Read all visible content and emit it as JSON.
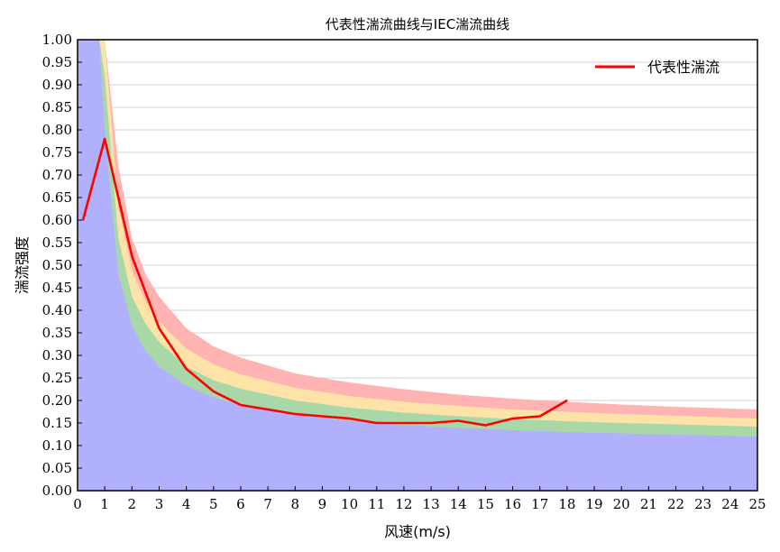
{
  "chart_data": {
    "type": "area",
    "title": "代表性湍流曲线与IEC湍流曲线",
    "xlabel": "风速(m/s)",
    "ylabel": "湍流强度",
    "xlim": [
      0,
      25
    ],
    "ylim": [
      0,
      1.0
    ],
    "x_ticks": [
      "0",
      "1",
      "2",
      "3",
      "4",
      "5",
      "6",
      "7",
      "8",
      "9",
      "10",
      "11",
      "12",
      "13",
      "14",
      "15",
      "16",
      "17",
      "18",
      "19",
      "20",
      "21",
      "22",
      "23",
      "24",
      "25"
    ],
    "y_ticks": [
      "0.00",
      "0.05",
      "0.10",
      "0.15",
      "0.20",
      "0.25",
      "0.30",
      "0.35",
      "0.40",
      "0.45",
      "0.50",
      "0.55",
      "0.60",
      "0.65",
      "0.70",
      "0.75",
      "0.80",
      "0.85",
      "0.90",
      "0.95",
      "1.00"
    ],
    "grid": "horizontal",
    "legend_position": "top-right",
    "bands": [
      {
        "color": "#b0b0fc",
        "x": [
          0.5,
          0.6,
          0.7,
          0.8,
          1.0,
          1.5,
          2,
          2.5,
          3,
          4,
          5,
          6,
          8,
          10,
          12,
          14,
          16,
          18,
          20,
          22,
          25
        ],
        "lower": 0,
        "upper": [
          1.0,
          1.0,
          1.0,
          1.0,
          0.8,
          0.48,
          0.365,
          0.31,
          0.275,
          0.232,
          0.207,
          0.19,
          0.168,
          0.155,
          0.146,
          0.139,
          0.134,
          0.13,
          0.127,
          0.124,
          0.12
        ]
      },
      {
        "color": "#a8d8a8",
        "x": [
          0.5,
          0.6,
          0.7,
          0.8,
          1.0,
          1.5,
          2,
          2.5,
          3,
          4,
          5,
          6,
          8,
          10,
          12,
          14,
          16,
          18,
          20,
          22,
          25
        ],
        "upper": [
          1.0,
          1.0,
          1.0,
          1.0,
          0.92,
          0.56,
          0.43,
          0.37,
          0.33,
          0.275,
          0.245,
          0.226,
          0.2,
          0.184,
          0.173,
          0.165,
          0.159,
          0.154,
          0.15,
          0.147,
          0.142
        ]
      },
      {
        "color": "#fde3a7",
        "x": [
          0.5,
          0.6,
          0.7,
          0.8,
          1.0,
          1.5,
          2,
          2.5,
          3,
          4,
          5,
          6,
          8,
          10,
          12,
          14,
          16,
          18,
          20,
          22,
          25
        ],
        "upper": [
          1.0,
          1.0,
          1.0,
          1.0,
          1.0,
          0.63,
          0.49,
          0.42,
          0.375,
          0.315,
          0.28,
          0.258,
          0.228,
          0.21,
          0.197,
          0.188,
          0.18,
          0.175,
          0.17,
          0.166,
          0.16
        ]
      },
      {
        "color": "#ffb3b3",
        "x": [
          0.5,
          0.6,
          0.7,
          0.8,
          1.0,
          1.5,
          2,
          2.5,
          3,
          4,
          5,
          6,
          8,
          10,
          12,
          14,
          16,
          18,
          20,
          22,
          25
        ],
        "upper": [
          1.0,
          1.0,
          1.0,
          1.0,
          1.0,
          0.72,
          0.56,
          0.48,
          0.43,
          0.36,
          0.32,
          0.295,
          0.26,
          0.24,
          0.225,
          0.213,
          0.204,
          0.197,
          0.191,
          0.186,
          0.18
        ]
      }
    ],
    "series": [
      {
        "name": "代表性湍流",
        "color": "#ff0000",
        "x": [
          0.2,
          1,
          2,
          3,
          4,
          5,
          6,
          7,
          8,
          9,
          10,
          11,
          12,
          13,
          14,
          15,
          16,
          17,
          18
        ],
        "values": [
          0.6,
          0.78,
          0.52,
          0.36,
          0.27,
          0.22,
          0.19,
          0.18,
          0.17,
          0.165,
          0.16,
          0.15,
          0.15,
          0.15,
          0.155,
          0.145,
          0.16,
          0.165,
          0.2
        ]
      }
    ]
  }
}
